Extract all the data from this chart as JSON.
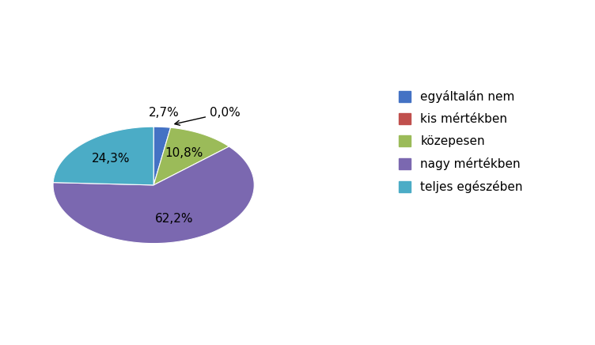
{
  "labels": [
    "egyáltalán nem",
    "kis mértékben",
    "közepesen",
    "nagy mértékben",
    "teljes egészében"
  ],
  "values": [
    2.7,
    0.0,
    10.8,
    62.2,
    24.3
  ],
  "colors": [
    "#4472C4",
    "#C0504D",
    "#9BBB59",
    "#7B68B0",
    "#4BACC6"
  ],
  "dark_colors": [
    "#2A4A8A",
    "#8B2020",
    "#4A5A20",
    "#4A3070",
    "#1A6B7A"
  ],
  "pct_labels": [
    "2,7%",
    "0,0%",
    "10,8%",
    "62,2%",
    "24,3%"
  ],
  "background_color": "#FFFFFF",
  "legend_labels": [
    "egyáltalán nem",
    "kis mértékben",
    "közepesen",
    "nagy mértékben",
    "teljes egészében"
  ],
  "startangle": 90,
  "label_fontsize": 11,
  "legend_fontsize": 11
}
